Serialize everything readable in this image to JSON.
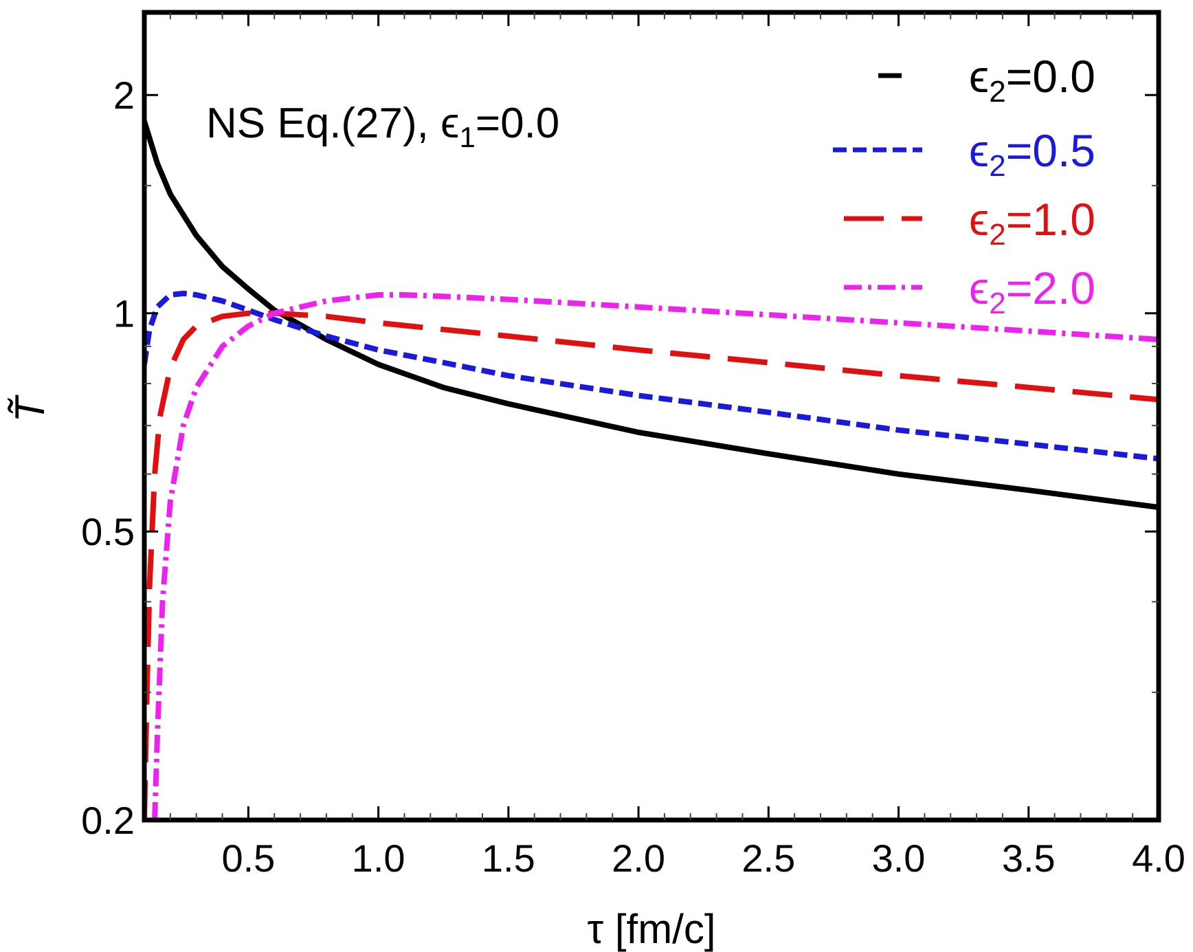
{
  "chart_data": {
    "type": "line",
    "xlabel": "τ [fm/c]",
    "ylabel": "T̃",
    "xlim": [
      0.1,
      4.0
    ],
    "ylim": [
      0.2,
      2.6
    ],
    "yscale": "log",
    "grid": false,
    "legend_placement": "top-right",
    "annotation": {
      "prefix": "NS Eq.(27), ",
      "symbol": "ϵ",
      "subscript": "1",
      "suffix": "=0.0"
    },
    "x_ticks": [
      {
        "value": 0.5,
        "label": "0.5"
      },
      {
        "value": 1.0,
        "label": "1.0"
      },
      {
        "value": 1.5,
        "label": "1.5"
      },
      {
        "value": 2.0,
        "label": "2.0"
      },
      {
        "value": 2.5,
        "label": "2.5"
      },
      {
        "value": 3.0,
        "label": "3.0"
      },
      {
        "value": 3.5,
        "label": "3.5"
      },
      {
        "value": 4.0,
        "label": "4.0"
      }
    ],
    "y_ticks": [
      {
        "value": 0.2,
        "label": "0.2"
      },
      {
        "value": 0.5,
        "label": "0.5"
      },
      {
        "value": 1,
        "label": "1"
      },
      {
        "value": 2,
        "label": "2"
      }
    ],
    "series": [
      {
        "name": "ϵ2=0.0",
        "legend": {
          "symbol": "ϵ",
          "subscript": "2",
          "suffix": "=0.0"
        },
        "color": "#000000",
        "style": "solid",
        "x": [
          0.1,
          0.15,
          0.2,
          0.3,
          0.4,
          0.5,
          0.6,
          0.8,
          1.0,
          1.25,
          1.5,
          2.0,
          2.5,
          3.0,
          3.5,
          4.0
        ],
        "y": [
          1.84,
          1.61,
          1.46,
          1.28,
          1.16,
          1.08,
          1.01,
          0.92,
          0.85,
          0.79,
          0.75,
          0.685,
          0.64,
          0.6,
          0.57,
          0.54
        ]
      },
      {
        "name": "ϵ2=0.5",
        "legend": {
          "symbol": "ϵ",
          "subscript": "2",
          "suffix": "=0.5"
        },
        "color": "#1a1adb",
        "style": "dashed-short",
        "x": [
          0.1,
          0.12,
          0.15,
          0.2,
          0.25,
          0.3,
          0.35,
          0.4,
          0.5,
          0.6,
          0.8,
          1.0,
          1.25,
          1.5,
          2.0,
          2.5,
          3.0,
          3.5,
          4.0
        ],
        "y": [
          0.85,
          0.95,
          1.02,
          1.06,
          1.065,
          1.06,
          1.05,
          1.04,
          1.01,
          0.98,
          0.93,
          0.89,
          0.855,
          0.82,
          0.77,
          0.73,
          0.69,
          0.66,
          0.63
        ]
      },
      {
        "name": "ϵ2=1.0",
        "legend": {
          "symbol": "ϵ",
          "subscript": "2",
          "suffix": "=1.0"
        },
        "color": "#e01010",
        "style": "dashed-long",
        "x": [
          0.1,
          0.11,
          0.12,
          0.14,
          0.16,
          0.2,
          0.25,
          0.3,
          0.4,
          0.5,
          0.6,
          0.7,
          0.8,
          1.0,
          1.5,
          2.0,
          2.5,
          3.0,
          3.5,
          4.0
        ],
        "y": [
          0.2,
          0.3,
          0.42,
          0.6,
          0.72,
          0.84,
          0.92,
          0.96,
          0.99,
          1.0,
          1.0,
          0.995,
          0.99,
          0.97,
          0.93,
          0.89,
          0.855,
          0.82,
          0.79,
          0.76
        ]
      },
      {
        "name": "ϵ2=2.0",
        "legend": {
          "symbol": "ϵ",
          "subscript": "2",
          "suffix": "=2.0"
        },
        "color": "#ee22ee",
        "style": "dash-dot",
        "x": [
          0.14,
          0.15,
          0.17,
          0.2,
          0.25,
          0.3,
          0.4,
          0.5,
          0.6,
          0.8,
          1.0,
          1.1,
          1.25,
          1.5,
          2.0,
          2.5,
          3.0,
          3.5,
          4.0
        ],
        "y": [
          0.2,
          0.26,
          0.4,
          0.55,
          0.7,
          0.79,
          0.9,
          0.96,
          1.0,
          1.04,
          1.06,
          1.06,
          1.055,
          1.045,
          1.02,
          0.995,
          0.97,
          0.945,
          0.92
        ]
      }
    ]
  }
}
